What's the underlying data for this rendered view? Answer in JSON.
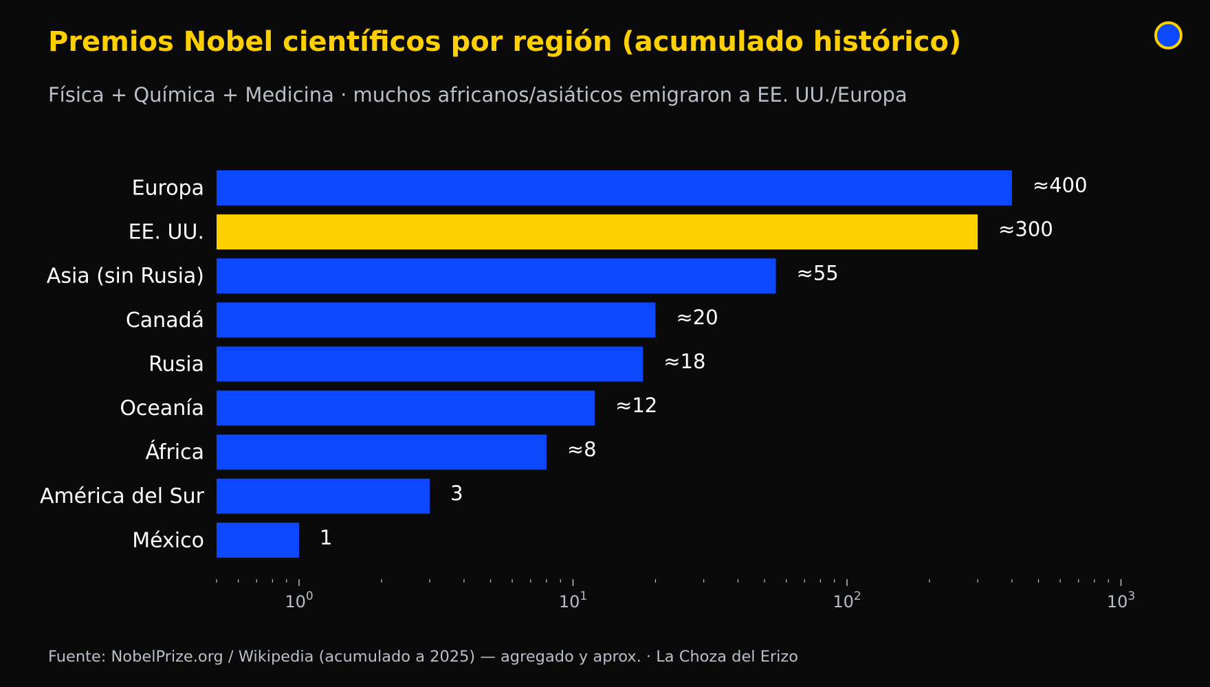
{
  "header": {
    "title": "Premios Nobel científicos por región (acumulado histórico)",
    "subtitle": "Física + Química + Medicina · muchos africanos/asiáticos emigraron a EE. UU./Europa"
  },
  "footer": {
    "source": "Fuente: NobelPrize.org / Wikipedia (acumulado a 2025) — agregado y aprox.  ·  La Choza del Erizo"
  },
  "chart_data": {
    "type": "bar",
    "orientation": "horizontal",
    "x_scale": "log",
    "xlim": [
      0.5,
      1000
    ],
    "grid": false,
    "categories": [
      "Europa",
      "EE. UU.",
      "Asia (sin Rusia)",
      "Canadá",
      "Rusia",
      "Oceanía",
      "África",
      "América del Sur",
      "México"
    ],
    "values": [
      400,
      300,
      55,
      20,
      18,
      12,
      8,
      3,
      1
    ],
    "value_labels": [
      "≈400",
      "≈300",
      "≈55",
      "≈20",
      "≈18",
      "≈12",
      "≈8",
      "3",
      "1"
    ],
    "highlight_category": "EE. UU.",
    "x_tick_values": [
      1,
      10,
      100,
      1000
    ],
    "x_tick_labels": [
      {
        "base": "10",
        "exp": "0"
      },
      {
        "base": "10",
        "exp": "1"
      },
      {
        "base": "10",
        "exp": "2"
      },
      {
        "base": "10",
        "exp": "3"
      }
    ],
    "colors": {
      "bar": "#0B48FF",
      "highlight": "#FFD000",
      "text": "#ffffff",
      "tick": "#b9bec8"
    }
  }
}
